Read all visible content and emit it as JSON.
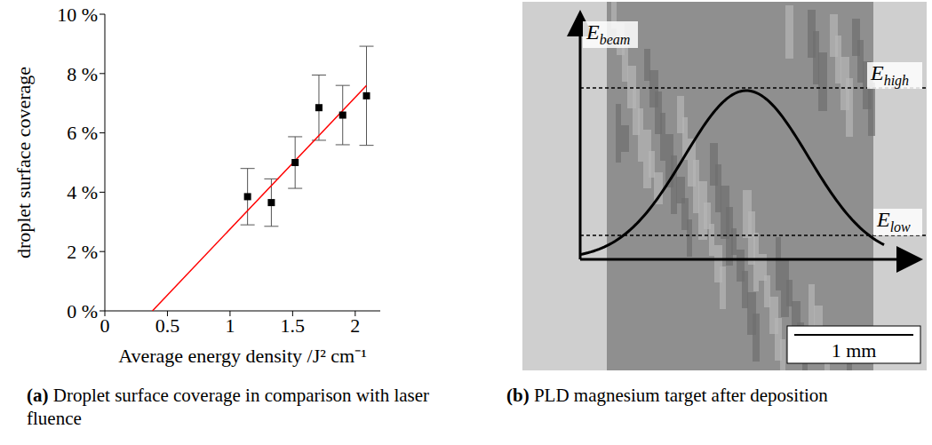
{
  "chart_data": {
    "type": "scatter",
    "caption_label": "(a)",
    "caption": "Droplet surface coverage in comparison with laser fluence",
    "x_label": "Average energy density /J² cm⁻¹",
    "y_label": "droplet surface coverage",
    "x": [
      1.14,
      1.33,
      1.52,
      1.71,
      1.9,
      2.09
    ],
    "values": [
      3.85,
      3.65,
      5.0,
      6.85,
      6.6,
      7.25
    ],
    "errors": [
      0.95,
      0.8,
      0.87,
      1.1,
      1.0,
      1.67
    ],
    "color": "#000000",
    "marker": "square",
    "fit": {
      "x": [
        0.38,
        2.09
      ],
      "values": [
        0,
        7.6
      ],
      "color": "#ff0000",
      "line_style": "solid"
    },
    "xlim": [
      0,
      2.2
    ],
    "xticks": [
      0,
      0.5,
      1,
      1.5,
      2
    ],
    "ylim": [
      0,
      10
    ],
    "yticks": [
      {
        "value": 0,
        "label": "0 %"
      },
      {
        "value": 2,
        "label": "2 %"
      },
      {
        "value": 4,
        "label": "4 %"
      },
      {
        "value": 6,
        "label": "6 %"
      },
      {
        "value": 8,
        "label": "8 %"
      },
      {
        "value": 10,
        "label": "10 %"
      }
    ],
    "grid": false
  },
  "image_panel": {
    "caption_label": "(b)",
    "caption": "PLD magnesium target after deposition",
    "axis_label": {
      "symbol": "E",
      "subscript": "beam"
    },
    "levels": [
      {
        "symbol": "E",
        "subscript": "high"
      },
      {
        "symbol": "E",
        "subscript": "low"
      }
    ],
    "scale_bar": "1 mm"
  }
}
